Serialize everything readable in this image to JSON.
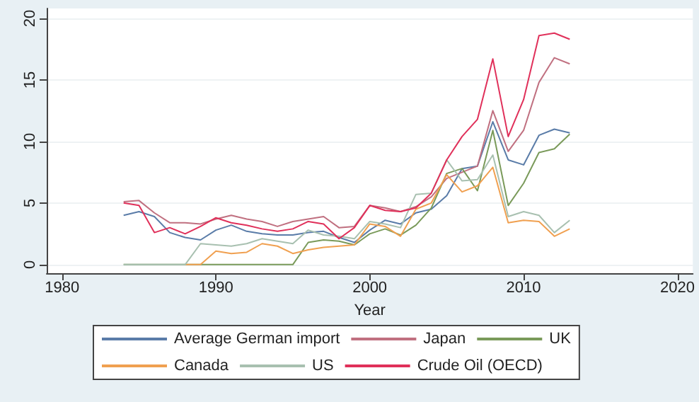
{
  "chart_data": {
    "type": "line",
    "xlabel": "Year",
    "x": [
      1984,
      1985,
      1986,
      1987,
      1988,
      1989,
      1990,
      1991,
      1992,
      1993,
      1994,
      1995,
      1996,
      1997,
      1998,
      1999,
      2000,
      2001,
      2002,
      2003,
      2004,
      2005,
      2006,
      2007,
      2008,
      2009,
      2010,
      2011,
      2012,
      2013
    ],
    "series": [
      {
        "name": "Average German import",
        "color": "#5a7ca8",
        "values": [
          4.0,
          4.3,
          3.9,
          2.6,
          2.2,
          2.0,
          2.8,
          3.2,
          2.7,
          2.5,
          2.4,
          2.4,
          2.6,
          2.7,
          2.2,
          1.8,
          2.8,
          3.6,
          3.3,
          4.2,
          4.5,
          5.6,
          7.8,
          8.0,
          11.6,
          8.5,
          8.1,
          10.5,
          11.0,
          10.7
        ]
      },
      {
        "name": "Japan",
        "color": "#c07080",
        "values": [
          5.1,
          5.2,
          4.2,
          3.4,
          3.4,
          3.3,
          3.7,
          4.0,
          3.7,
          3.5,
          3.1,
          3.5,
          3.7,
          3.9,
          3.0,
          3.1,
          4.8,
          4.6,
          4.3,
          4.7,
          5.5,
          7.0,
          7.5,
          8.0,
          12.5,
          9.2,
          10.9,
          14.8,
          16.8,
          16.3
        ]
      },
      {
        "name": "UK",
        "color": "#7a9a5a",
        "values": [
          0,
          0,
          0,
          0,
          0,
          0,
          0,
          0,
          0,
          0,
          0,
          0,
          1.8,
          2.0,
          1.9,
          1.6,
          2.5,
          2.9,
          2.4,
          3.2,
          4.6,
          7.4,
          7.8,
          6.0,
          10.9,
          4.8,
          6.6,
          9.1,
          9.4,
          10.6
        ]
      },
      {
        "name": "Canada",
        "color": "#f0a050",
        "values": [
          null,
          null,
          null,
          null,
          0,
          0,
          1.1,
          0.9,
          1.0,
          1.7,
          1.5,
          0.9,
          1.2,
          1.4,
          1.5,
          1.6,
          3.3,
          3.1,
          2.3,
          4.5,
          5.0,
          7.3,
          5.9,
          6.4,
          7.9,
          3.4,
          3.6,
          3.5,
          2.3,
          2.9
        ]
      },
      {
        "name": "US",
        "color": "#a8c0b0",
        "values": [
          0,
          0,
          0,
          0,
          0,
          1.7,
          1.6,
          1.5,
          1.7,
          2.1,
          1.9,
          1.7,
          2.8,
          2.4,
          2.3,
          2.1,
          3.5,
          3.3,
          3.0,
          5.7,
          5.8,
          8.5,
          6.8,
          6.9,
          8.9,
          3.9,
          4.3,
          4.0,
          2.6,
          3.6
        ]
      },
      {
        "name": "Crude Oil (OECD)",
        "color": "#e0305a",
        "values": [
          5.0,
          4.8,
          2.6,
          3.0,
          2.5,
          3.1,
          3.8,
          3.4,
          3.2,
          2.9,
          2.7,
          2.9,
          3.5,
          3.3,
          2.1,
          3.0,
          4.8,
          4.4,
          4.3,
          4.6,
          5.8,
          8.5,
          10.4,
          11.8,
          16.7,
          10.4,
          13.4,
          18.6,
          18.8,
          18.3
        ]
      }
    ],
    "xlim": [
      1979,
      2021
    ],
    "xticks": [
      1980,
      1990,
      2000,
      2010,
      2020
    ],
    "ylim": [
      -0.7,
      20.8
    ],
    "yticks": [
      0,
      5,
      10,
      15,
      20
    ],
    "grid": "y",
    "legend": "bottom",
    "marker": "none",
    "line_style": "solid"
  }
}
